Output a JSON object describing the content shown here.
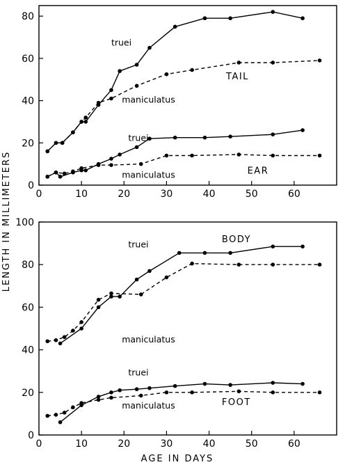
{
  "y_axis_label": "LENGTH IN MILLIMETERS",
  "chart_data": [
    {
      "type": "line",
      "xlabel": "AGE IN DAYS",
      "ylabel": "LENGTH IN MILLIMETERS",
      "xlim": [
        0,
        70
      ],
      "ylim": [
        0,
        85
      ],
      "x_ticks": [
        0,
        10,
        20,
        30,
        40,
        50,
        60
      ],
      "y_ticks": [
        0,
        20,
        40,
        60,
        80
      ],
      "grid": false,
      "group_labels": [
        "TAIL",
        "EAR"
      ],
      "series": [
        {
          "name": "truei",
          "group": "TAIL",
          "style": "solid",
          "x": [
            2,
            4,
            5.5,
            8,
            10,
            11,
            14,
            17,
            19,
            23,
            26,
            32,
            39,
            45,
            55,
            62
          ],
          "y": [
            16,
            20,
            20,
            25,
            30,
            30,
            38,
            45,
            54,
            57,
            65,
            75,
            79,
            79,
            82,
            79
          ]
        },
        {
          "name": "maniculatus",
          "group": "TAIL",
          "style": "dashed",
          "x": [
            2,
            4,
            5.5,
            8,
            10,
            11,
            14,
            17,
            23,
            30,
            36,
            47,
            55,
            66
          ],
          "y": [
            16,
            20,
            20,
            25,
            30,
            32,
            39,
            41,
            47,
            52.5,
            54.5,
            58,
            58,
            59
          ]
        },
        {
          "name": "truei",
          "group": "EAR",
          "style": "solid",
          "x": [
            2,
            4,
            5,
            8,
            10,
            11,
            14,
            17,
            19,
            23,
            26,
            32,
            39,
            45,
            55,
            62
          ],
          "y": [
            4,
            6,
            4,
            6,
            7,
            7,
            10,
            12.5,
            14.5,
            18,
            22,
            22.5,
            22.5,
            23,
            24,
            26
          ]
        },
        {
          "name": "maniculatus",
          "group": "EAR",
          "style": "dashed",
          "x": [
            2,
            4,
            6,
            8,
            10,
            14,
            17,
            24,
            30,
            36,
            47,
            55,
            66
          ],
          "y": [
            4,
            6,
            5.5,
            6.5,
            8,
            9.5,
            9.5,
            10,
            14,
            14,
            14.5,
            14,
            14
          ]
        }
      ],
      "annotations": [
        {
          "text": "truei",
          "group": "TAIL"
        },
        {
          "text": "maniculatus",
          "group": "TAIL"
        },
        {
          "text": "TAIL",
          "group": "TAIL"
        },
        {
          "text": "truei",
          "group": "EAR"
        },
        {
          "text": "maniculatus",
          "group": "EAR"
        },
        {
          "text": "EAR",
          "group": "EAR"
        }
      ]
    },
    {
      "type": "line",
      "xlabel": "AGE IN DAYS",
      "ylabel": "LENGTH IN MILLIMETERS",
      "xlim": [
        0,
        70
      ],
      "ylim": [
        0,
        100
      ],
      "x_ticks": [
        0,
        10,
        20,
        30,
        40,
        50,
        60
      ],
      "y_ticks": [
        0,
        20,
        40,
        60,
        80,
        100
      ],
      "grid": false,
      "group_labels": [
        "BODY",
        "FOOT"
      ],
      "series": [
        {
          "name": "truei",
          "group": "BODY",
          "style": "solid",
          "x": [
            5,
            10,
            14,
            17,
            19,
            23,
            26,
            33,
            39,
            45,
            55,
            62
          ],
          "y": [
            43,
            50,
            60,
            65,
            65,
            73,
            77,
            85.5,
            85.5,
            85.5,
            88.5,
            88.5
          ]
        },
        {
          "name": "maniculatus",
          "group": "BODY",
          "style": "dashed",
          "x": [
            2,
            4,
            6,
            8,
            10,
            14,
            17,
            24,
            30,
            36,
            47,
            55,
            66
          ],
          "y": [
            44,
            44.5,
            46,
            49,
            53,
            63.5,
            66.5,
            66,
            74,
            80.5,
            80,
            80,
            80
          ]
        },
        {
          "name": "truei",
          "group": "FOOT",
          "style": "solid",
          "x": [
            5,
            10,
            14,
            17,
            19,
            23,
            26,
            32,
            39,
            45,
            55,
            62
          ],
          "y": [
            6,
            14,
            18,
            20,
            21,
            21.5,
            22,
            23,
            24,
            23.5,
            24.5,
            24
          ]
        },
        {
          "name": "maniculatus",
          "group": "FOOT",
          "style": "dashed",
          "x": [
            2,
            4,
            6,
            8,
            10,
            14,
            17,
            24,
            30,
            36,
            47,
            55,
            66
          ],
          "y": [
            9,
            9.5,
            10.5,
            13,
            15,
            16.5,
            17.5,
            18.5,
            20,
            20,
            20.5,
            20,
            20
          ]
        }
      ],
      "annotations": [
        {
          "text": "truei",
          "group": "BODY"
        },
        {
          "text": "maniculatus",
          "group": "BODY"
        },
        {
          "text": "BODY",
          "group": "BODY"
        },
        {
          "text": "truei",
          "group": "FOOT"
        },
        {
          "text": "maniculatus",
          "group": "FOOT"
        },
        {
          "text": "FOOT",
          "group": "FOOT"
        }
      ]
    }
  ]
}
